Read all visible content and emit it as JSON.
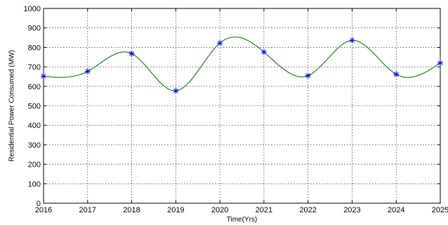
{
  "chart_data": {
    "type": "line",
    "title": "",
    "xlabel": "Time(Yrs)",
    "ylabel": "Residential Power Consumed (MW)",
    "xlim": [
      2016,
      2025
    ],
    "ylim": [
      0,
      1000
    ],
    "x_ticks": [
      2016,
      2017,
      2018,
      2019,
      2020,
      2021,
      2022,
      2023,
      2024,
      2025
    ],
    "y_ticks": [
      0,
      100,
      200,
      300,
      400,
      500,
      600,
      700,
      800,
      900,
      1000
    ],
    "grid": true,
    "series": [
      {
        "role": "data-points",
        "marker": "star",
        "color": "#0000ff",
        "x": [
          2016,
          2017,
          2018,
          2019,
          2020,
          2021,
          2022,
          2023,
          2024,
          2025
        ],
        "y": [
          652,
          677,
          768,
          577,
          822,
          776,
          655,
          836,
          662,
          720
        ]
      },
      {
        "role": "fitted-curve",
        "color": "#008000",
        "interpolation": "cubic-spline"
      }
    ]
  }
}
